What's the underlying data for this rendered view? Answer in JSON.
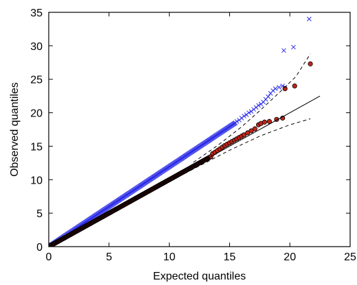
{
  "chart_data": {
    "type": "scatter",
    "title": "",
    "xlabel": "Expected quantiles",
    "ylabel": "Observed quantiles",
    "xlim": [
      0,
      25
    ],
    "ylim": [
      0,
      35
    ],
    "xticks": [
      "0",
      "5",
      "10",
      "15",
      "20",
      "25"
    ],
    "yticks": [
      "0",
      "5",
      "10",
      "15",
      "20",
      "25",
      "30",
      "35"
    ],
    "grid": false,
    "legend": "none",
    "series": [
      {
        "marker": "x",
        "color": "#2a2ae8",
        "dense_segment": {
          "x_start": 0,
          "x_end": 15.5,
          "slope": 1.195,
          "intercept": 0
        },
        "points": [
          [
            15.6,
            18.7
          ],
          [
            15.8,
            18.9
          ],
          [
            16.0,
            19.2
          ],
          [
            16.2,
            19.5
          ],
          [
            16.4,
            19.7
          ],
          [
            16.6,
            20.0
          ],
          [
            16.8,
            20.2
          ],
          [
            17.0,
            20.5
          ],
          [
            17.2,
            20.8
          ],
          [
            17.4,
            21.1
          ],
          [
            17.6,
            21.3
          ],
          [
            17.8,
            21.6
          ],
          [
            18.0,
            22.0
          ],
          [
            18.2,
            22.4
          ],
          [
            18.4,
            22.9
          ],
          [
            18.6,
            23.3
          ],
          [
            18.8,
            23.6
          ],
          [
            19.1,
            23.8
          ],
          [
            19.4,
            24.0
          ],
          [
            19.6,
            23.8
          ],
          [
            19.5,
            29.3
          ],
          [
            20.3,
            29.8
          ],
          [
            21.6,
            34.0
          ]
        ]
      },
      {
        "marker": "dot",
        "color": "#c0261a",
        "dense_segment": {
          "x_start": 0,
          "x_end": 13.5,
          "slope": 1.0,
          "intercept": 0
        },
        "points": [
          [
            13.6,
            13.9
          ],
          [
            13.8,
            14.1
          ],
          [
            14.0,
            14.35
          ],
          [
            14.2,
            14.6
          ],
          [
            14.4,
            14.85
          ],
          [
            14.6,
            15.1
          ],
          [
            14.8,
            15.3
          ],
          [
            15.0,
            15.5
          ],
          [
            15.2,
            15.7
          ],
          [
            15.4,
            15.9
          ],
          [
            15.6,
            16.1
          ],
          [
            15.8,
            16.3
          ],
          [
            16.0,
            16.5
          ],
          [
            16.2,
            16.7
          ],
          [
            16.5,
            17.0
          ],
          [
            16.8,
            17.3
          ],
          [
            17.1,
            17.6
          ],
          [
            17.4,
            18.2
          ],
          [
            17.6,
            18.4
          ],
          [
            17.9,
            18.6
          ],
          [
            18.3,
            18.7
          ],
          [
            18.9,
            19.0
          ],
          [
            19.4,
            19.2
          ],
          [
            19.6,
            23.6
          ],
          [
            20.4,
            24.0
          ],
          [
            21.7,
            27.3
          ]
        ]
      }
    ],
    "reference_line": {
      "x": [
        0,
        22.5
      ],
      "y": [
        0,
        22.5
      ],
      "style": "solid"
    },
    "confidence_band": {
      "upper": {
        "x": [
          12.0,
          14.0,
          16.0,
          17.5,
          19.0,
          20.5,
          21.7
        ],
        "y": [
          12.6,
          15.1,
          17.9,
          20.3,
          22.8,
          25.4,
          28.8
        ]
      },
      "lower": {
        "x": [
          9.0,
          12.0,
          15.0,
          17.5,
          20.0,
          21.7
        ],
        "y": [
          8.8,
          11.6,
          14.4,
          16.5,
          18.2,
          19.1
        ]
      },
      "style": "dashed"
    }
  }
}
